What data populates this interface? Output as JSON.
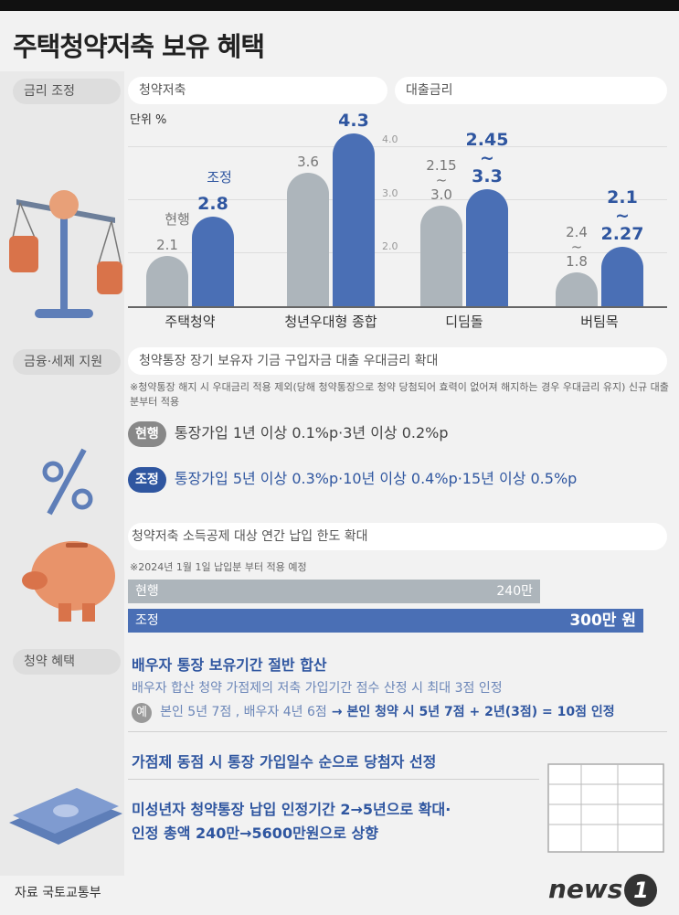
{
  "title": "주택청약저축 보유 혜택",
  "section1": {
    "label": "금리 조정",
    "left_header": "청약저축",
    "right_header": "대출금리",
    "unit": "단위 %"
  },
  "chart_data": {
    "type": "bar",
    "unit": "단위 %",
    "categories": [
      "주택청약",
      "청년우대형 종합",
      "디딤돌",
      "버팀목"
    ],
    "series": [
      {
        "name": "현행",
        "values": [
          2.1,
          3.6,
          3.0,
          1.8
        ]
      },
      {
        "name": "조정",
        "values": [
          2.8,
          4.3,
          3.3,
          2.27
        ]
      }
    ],
    "data_labels": {
      "gray": [
        "2.1",
        "3.6",
        "2.15\n~\n3.0",
        "2.4\n~\n1.8"
      ],
      "blue": [
        "2.8",
        "4.3",
        "2.45\n~\n3.3",
        "2.1\n~\n2.27"
      ]
    },
    "series_labels": {
      "gray": "현행",
      "blue": "조정"
    },
    "axis_ticks": [
      "4.0",
      "3.0",
      "2.0"
    ],
    "ylim": [
      0,
      4.3
    ]
  },
  "section2": {
    "label": "금융·세제 지원",
    "header": "청약통장 장기 보유자 기금 구입자금 대출 우대금리 확대",
    "note": "※청약통장 해지 시 우대금리 적용 제외(당해 청약통장으로 청약 당첨되어 효력이 없어져 해지하는 경우 우대금리 유지) 신규 대출분부터 적용",
    "current_tag": "현행",
    "current_text": "통장가입 1년 이상 0.1%p·3년 이상 0.2%p",
    "new_tag": "조정",
    "new_text": "통장가입 5년 이상 0.3%p·10년 이상 0.4%p·15년 이상 0.5%p",
    "limit_header": "청약저축 소득공제 대상 연간 납입 한도 확대",
    "limit_note": "※2024년 1월 1일 납입분 부터 적용 예정",
    "limit_current_label": "현행",
    "limit_current_value": "240만",
    "limit_current_num": 240,
    "limit_new_label": "조정",
    "limit_new_value": "300만 원",
    "limit_new_num": 300
  },
  "section3": {
    "label": "청약 혜택",
    "b1_title": "배우자 통장 보유기간 절반 합산",
    "b1_sub": "배우자 합산 청약 가점제의 저축 가입기간 점수 산정 시 최대 3점 인정",
    "b1_ex_badge": "예",
    "b1_ex_text1": "본인 5년 7점 , 배우자 4년 6점",
    "b1_ex_text2": "→ 본인 청약 시 5년 7점 + 2년(3점) = 10점 인정",
    "b2_title": "가점제 동점 시 통장 가입일수 순으로 당첨자 선정",
    "b3_line1": "미성년자 청약통장 납입 인정기간 2→5년으로 확대·",
    "b3_line2": "인정 총액 240만→5600만원으로 상향"
  },
  "footer": {
    "source": "자료 국토교통부",
    "logo": "news",
    "logo_mark": "1"
  },
  "colors": {
    "blue": "#4a6fb5",
    "gray": "#adb5bb",
    "accent": "#2f56a0"
  }
}
